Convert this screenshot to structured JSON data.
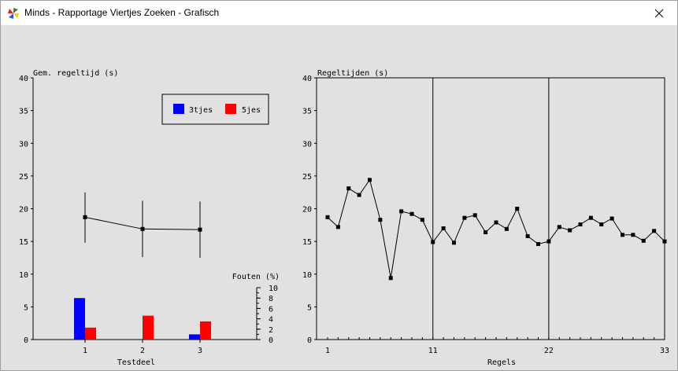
{
  "window": {
    "title": "Minds - Rapportage Viertjes Zoeken - Grafisch"
  },
  "icons": {
    "app": "pinwheel-icon",
    "close": "close-icon"
  },
  "colors": {
    "series_3tjes": "#0000ff",
    "series_5jes": "#ff0000",
    "background": "#e1e1e1"
  },
  "chart_data": [
    {
      "type": "line",
      "title": "Gem. regeltijd (s)",
      "xlabel": "Testdeel",
      "categories": [
        "1",
        "2",
        "3"
      ],
      "ylim": [
        0,
        40
      ],
      "yticks": [
        0,
        5,
        10,
        15,
        20,
        25,
        30,
        35,
        40
      ],
      "series": [
        {
          "values": [
            18.7,
            16.9,
            16.8
          ],
          "error_low": [
            14.8,
            12.6,
            12.5
          ],
          "error_high": [
            22.5,
            21.2,
            21.1
          ]
        }
      ],
      "legend": {
        "placement": "top-right",
        "entries": [
          "3tjes",
          "5jes"
        ]
      },
      "errors_chart": {
        "type": "bar",
        "title": "Fouten (%)",
        "ylim": [
          0,
          10
        ],
        "yticks": [
          0,
          2,
          4,
          6,
          8,
          10
        ],
        "categories": [
          "1",
          "2",
          "3"
        ],
        "series": [
          {
            "name": "3tjes",
            "values": [
              8.0,
              0,
              1.0
            ]
          },
          {
            "name": "5jes",
            "values": [
              2.3,
              4.6,
              3.5
            ]
          }
        ]
      }
    },
    {
      "type": "line",
      "title": "Regeltijden (s)",
      "xlabel": "Regels",
      "xlim": [
        1,
        33
      ],
      "xticks": [
        1,
        11,
        22,
        33
      ],
      "ylim": [
        0,
        40
      ],
      "yticks": [
        0,
        5,
        10,
        15,
        20,
        25,
        30,
        35,
        40
      ],
      "dividers": [
        11,
        22
      ],
      "x": [
        1,
        2,
        3,
        4,
        5,
        6,
        7,
        8,
        9,
        10,
        11,
        12,
        13,
        14,
        15,
        16,
        17,
        18,
        19,
        20,
        21,
        22,
        23,
        24,
        25,
        26,
        27,
        28,
        29,
        30,
        31,
        32,
        33
      ],
      "values": [
        18.7,
        17.2,
        23.1,
        22.1,
        24.4,
        18.3,
        9.4,
        19.6,
        19.2,
        18.3,
        14.9,
        17.0,
        14.8,
        18.6,
        19.0,
        16.4,
        17.9,
        16.9,
        20.0,
        15.8,
        14.6,
        15.0,
        17.2,
        16.7,
        17.6,
        18.6,
        17.6,
        18.5,
        16.0,
        16.0,
        15.1,
        16.6,
        15.0
      ]
    }
  ]
}
